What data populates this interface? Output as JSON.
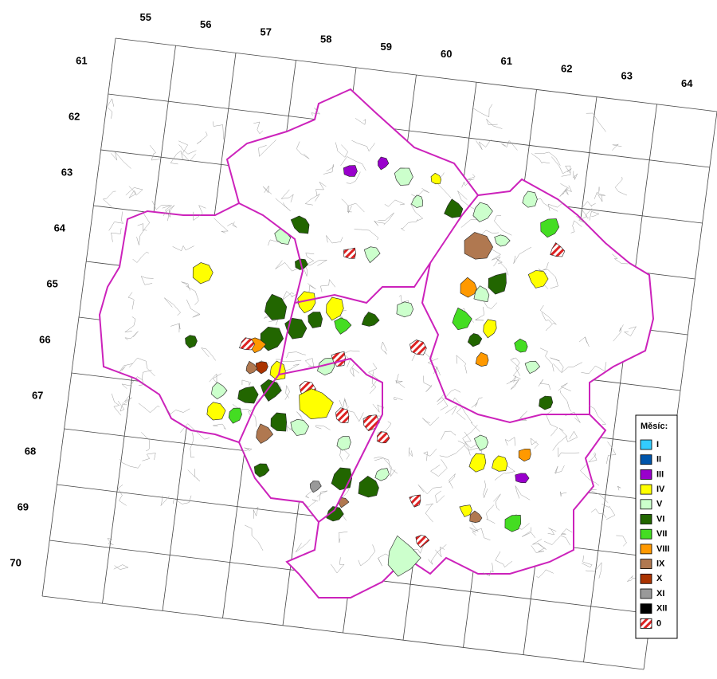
{
  "grid": {
    "columns": [
      "55",
      "56",
      "57",
      "58",
      "59",
      "60",
      "61",
      "62",
      "63",
      "64"
    ],
    "rows": [
      "61",
      "62",
      "63",
      "64",
      "65",
      "66",
      "67",
      "68",
      "69",
      "70"
    ]
  },
  "legend": {
    "title": "Měsíc:",
    "items": [
      {
        "label": "I",
        "color": "#33ccff"
      },
      {
        "label": "II",
        "color": "#0055aa"
      },
      {
        "label": "III",
        "color": "#9900cc"
      },
      {
        "label": "IV",
        "color": "#ffff00"
      },
      {
        "label": "V",
        "color": "#ccffcc"
      },
      {
        "label": "VI",
        "color": "#226600"
      },
      {
        "label": "VII",
        "color": "#44dd22"
      },
      {
        "label": "VIII",
        "color": "#ff9900"
      },
      {
        "label": "IX",
        "color": "#b07850"
      },
      {
        "label": "X",
        "color": "#aa3300"
      },
      {
        "label": "XI",
        "color": "#999999"
      },
      {
        "label": "XII",
        "color": "#000000"
      },
      {
        "label": "0",
        "color": "hatch"
      }
    ]
  }
}
